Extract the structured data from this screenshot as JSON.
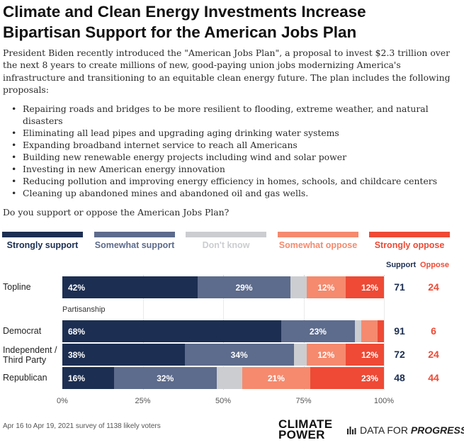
{
  "title_lines": [
    "Climate and Clean Energy Investments Increase",
    "Bipartisan Support for the American Jobs Plan"
  ],
  "intro": "President Biden recently introduced the \"American Jobs Plan\", a proposal to invest $2.3 trillion over the next 8 years to create millions of new, good-paying union jobs modernizing America's infrastructure and transitioning to an equitable clean energy future. The plan includes the following proposals:",
  "proposals": [
    "Repairing roads and bridges to be more resilient to flooding, extreme weather, and natural disasters",
    "Eliminating all lead pipes and upgrading aging drinking water systems",
    "Expanding broadband internet service to reach all Americans",
    "Building new renewable energy projects including wind and solar power",
    "Investing in new American energy innovation",
    "Reducing pollution and improving energy efficiency in homes, schools, and childcare centers",
    "Cleaning up abandoned mines and abandoned oil and gas wells."
  ],
  "question": "Do you support or oppose the American Jobs Plan?",
  "chart_data": {
    "type": "bar",
    "orientation": "horizontal",
    "stacked": true,
    "xlim": [
      0,
      100
    ],
    "x_ticks": [
      "0%",
      "25%",
      "50%",
      "75%",
      "100%"
    ],
    "categories": [
      "Topline",
      "Democrat",
      "Independent / Third Party",
      "Republican"
    ],
    "group_label": "Partisanship",
    "legend_position": "top",
    "series": [
      {
        "name": "Strongly support",
        "color": "#1c2f52",
        "values": [
          42,
          68,
          38,
          16
        ]
      },
      {
        "name": "Somewhat support",
        "color": "#5d6b8c",
        "values": [
          29,
          23,
          34,
          32
        ]
      },
      {
        "name": "Don't know",
        "color": "#cbcdd0",
        "values": [
          5,
          2,
          4,
          8
        ]
      },
      {
        "name": "Somewhat oppose",
        "color": "#f58a6e",
        "values": [
          12,
          5,
          12,
          21
        ]
      },
      {
        "name": "Strongly oppose",
        "color": "#ee4a35",
        "values": [
          12,
          2,
          12,
          23
        ]
      }
    ],
    "bar_labels": [
      [
        "42%",
        "29%",
        "",
        "12%",
        "12%"
      ],
      [
        "68%",
        "23%",
        "",
        "",
        ""
      ],
      [
        "38%",
        "34%",
        "",
        "12%",
        "12%"
      ],
      [
        "16%",
        "32%",
        "",
        "21%",
        "23%"
      ]
    ],
    "summary_columns": [
      {
        "name": "Support",
        "color": "#1c2f52",
        "values": [
          71,
          91,
          72,
          48
        ]
      },
      {
        "name": "Oppose",
        "color": "#ee4a35",
        "values": [
          24,
          6,
          24,
          44
        ]
      }
    ]
  },
  "footnote": "Apr 16 to Apr 19, 2021 survey of 1138 likely voters",
  "logos": {
    "climate_power": [
      "CLIMATE",
      "POWER"
    ],
    "data_for_progress_a": "DATA FOR ",
    "data_for_progress_b": "PROGRESS"
  }
}
